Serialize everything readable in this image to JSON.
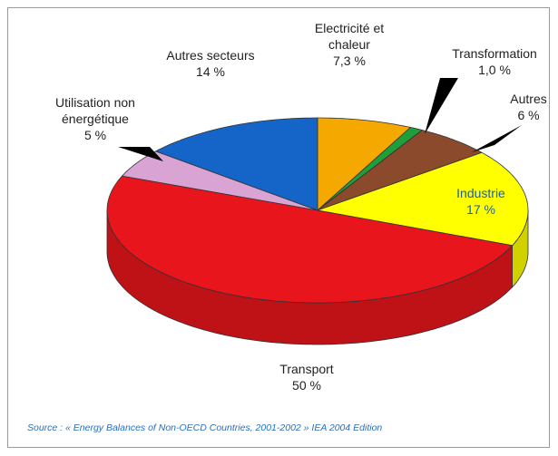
{
  "chart_data": {
    "type": "pie",
    "categories": [
      "Electricité et chaleur",
      "Transformation",
      "Autres",
      "Industrie",
      "Transport",
      "Utilisation non énergétique",
      "Autres secteurs"
    ],
    "values": [
      7.3,
      1.0,
      6,
      17,
      50,
      5,
      14
    ],
    "value_labels": [
      "7,3 %",
      "1,0 %",
      "6 %",
      "17 %",
      "50 %",
      "5 %",
      "14 %"
    ],
    "colors": [
      "#f5a800",
      "#1f9e3a",
      "#8b4a2b",
      "#ffff00",
      "#e8161c",
      "#d9a3d3",
      "#1565c8"
    ],
    "source": "Source : « Energy Balances of Non-OECD Countries, 2001-2002 » IEA 2004 Edition"
  }
}
